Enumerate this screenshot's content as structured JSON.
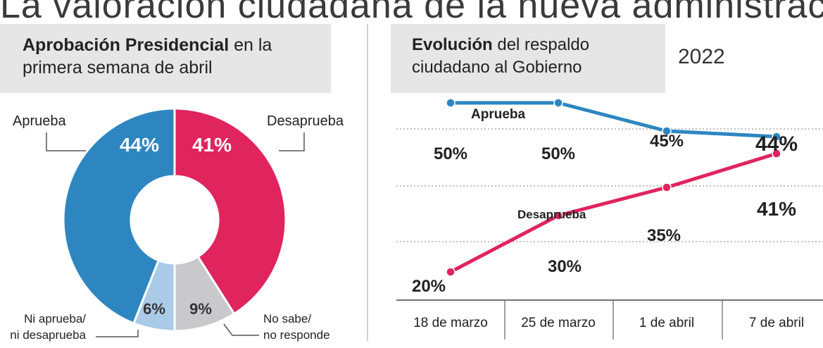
{
  "headline": "La valoración ciudadana de la nueva administración",
  "left_title_bold": "Aprobación Presidencial",
  "left_title_rest": " en la primera semana de abril",
  "right_title_bold": "Evolución",
  "right_title_rest": " del respaldo ciudadano al Gobierno",
  "year": "2022",
  "colors": {
    "approve": "#2e86c1",
    "disapprove": "#e0245e",
    "neither": "#a9cbe8",
    "no_answer": "#c9c9cc"
  },
  "chart_data": [
    {
      "type": "pie",
      "title": "Aprobación Presidencial en la primera semana de abril",
      "slices": [
        {
          "key": "aprueba",
          "label": "Aprueba",
          "value": 44,
          "value_label": "44%"
        },
        {
          "key": "ni",
          "label": "Ni aprueba/ ni desaprueba",
          "label_line1": "Ni aprueba/",
          "label_line2": "ni desaprueba",
          "value": 6,
          "value_label": "6%"
        },
        {
          "key": "ns",
          "label": "No sabe/ no responde",
          "label_line1": "No sabe/",
          "label_line2": "no responde",
          "value": 9,
          "value_label": "9%"
        },
        {
          "key": "desaprueba",
          "label": "Desaprueba",
          "value": 41,
          "value_label": "41%"
        }
      ]
    },
    {
      "type": "line",
      "title": "Evolución del respaldo ciudadano al Gobierno",
      "categories": [
        "18 de marzo",
        "25 de marzo",
        "1 de abril",
        "7 de abril"
      ],
      "ylim": [
        15,
        55
      ],
      "series": [
        {
          "name": "Aprueba",
          "x": [
            0,
            1,
            2,
            3
          ],
          "values": [
            50,
            50,
            45,
            44
          ],
          "labels": [
            "50%",
            "50%",
            "45%",
            "44%"
          ]
        },
        {
          "name": "Desaprueba",
          "x": [
            0,
            1,
            2,
            3
          ],
          "values": [
            20,
            30,
            35,
            41
          ],
          "labels": [
            "20%",
            "30%",
            "35%",
            "41%"
          ]
        }
      ]
    }
  ]
}
